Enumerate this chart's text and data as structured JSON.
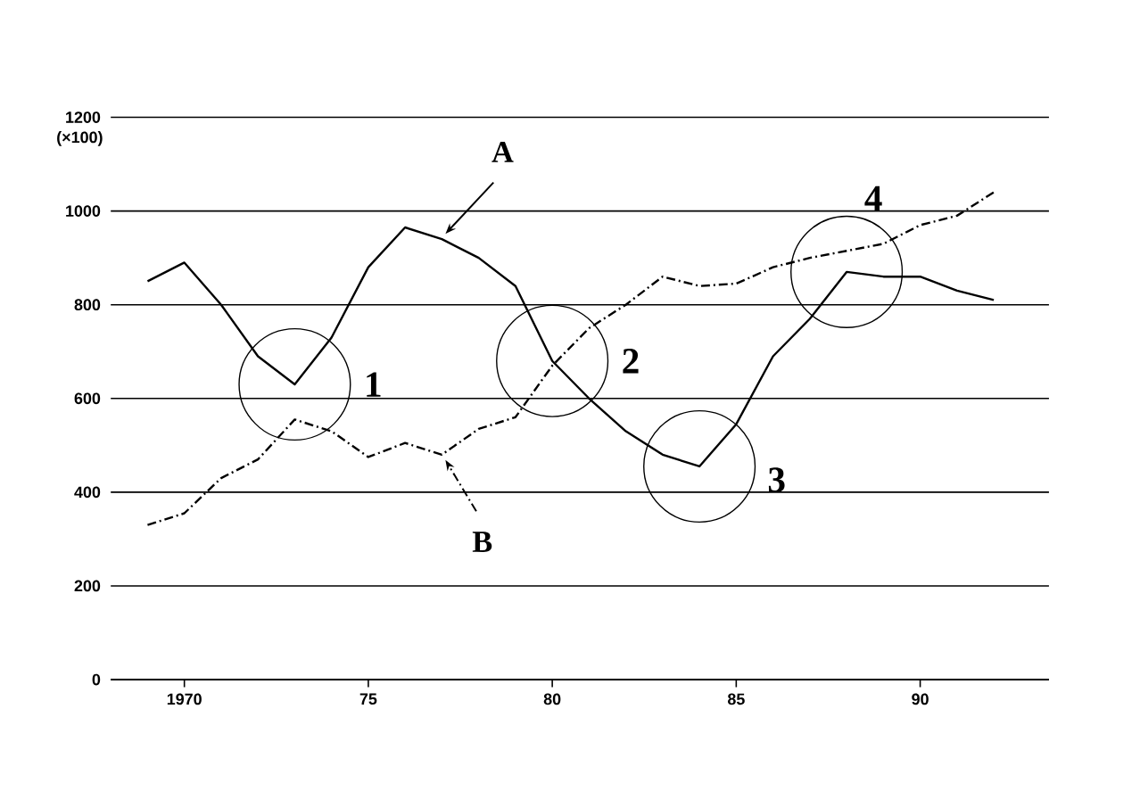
{
  "chart_data": {
    "type": "line",
    "ylabel": "(×100)",
    "x": [
      1969,
      1970,
      1971,
      1972,
      1973,
      1974,
      1975,
      1976,
      1977,
      1978,
      1979,
      1980,
      1981,
      1982,
      1983,
      1984,
      1985,
      1986,
      1987,
      1988,
      1989,
      1990,
      1991,
      1992
    ],
    "series": [
      {
        "name": "A",
        "color": "#000000",
        "line_style": "solid",
        "values": [
          850,
          890,
          800,
          690,
          630,
          730,
          880,
          965,
          940,
          900,
          840,
          680,
          600,
          530,
          480,
          455,
          545,
          690,
          770,
          870,
          860,
          860,
          830,
          810
        ]
      },
      {
        "name": "B",
        "color": "#000000",
        "line_style": "dashed",
        "values": [
          330,
          355,
          430,
          470,
          555,
          530,
          475,
          505,
          480,
          535,
          560,
          670,
          750,
          800,
          860,
          840,
          845,
          880,
          900,
          915,
          930,
          970,
          990,
          1040
        ]
      }
    ],
    "xlim": [
      1968,
      1993.5
    ],
    "xticks": [
      {
        "value": 1970,
        "label": "1970"
      },
      {
        "value": 1975,
        "label": "75"
      },
      {
        "value": 1980,
        "label": "80"
      },
      {
        "value": 1985,
        "label": "85"
      },
      {
        "value": 1990,
        "label": "90"
      }
    ],
    "ylim": [
      0,
      1200
    ],
    "yticks": [
      0,
      200,
      400,
      600,
      800,
      1000,
      1200
    ],
    "grid": "y",
    "marker": "none",
    "annotations": [
      {
        "text": "1",
        "x": 1973,
        "y": 630
      },
      {
        "text": "2",
        "x": 1980,
        "y": 680
      },
      {
        "text": "3",
        "x": 1984,
        "y": 455
      },
      {
        "text": "4",
        "x": 1988,
        "y": 870
      }
    ]
  }
}
